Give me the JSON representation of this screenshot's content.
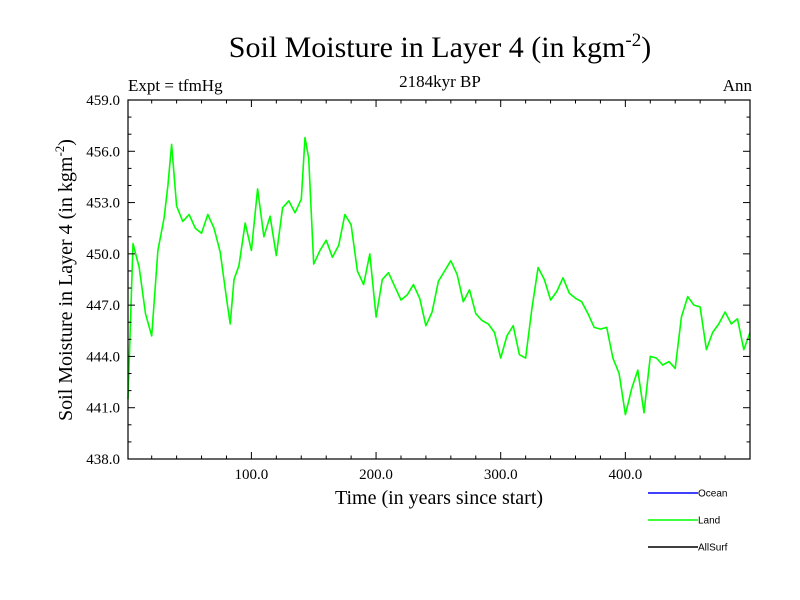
{
  "header": {
    "title_main": "Soil Moisture in Layer 4 (in kgm",
    "title_sup": "-2",
    "title_end": ")",
    "expt": "Expt = tfmHg",
    "subtitle": "2184kyr BP",
    "season": "Ann"
  },
  "colors": {
    "ocean": "#0000ff",
    "land": "#00ff00",
    "allsurf": "#000000"
  },
  "chart_data": {
    "type": "line",
    "title": "Soil Moisture in Layer 4 (in kgm-2)",
    "xlabel": "Time (in years since start)",
    "ylabel_main": "Soil Moisture in Layer 4 (in kgm",
    "ylabel_sup": "-2",
    "ylabel_end": ")",
    "xlim": [
      1,
      500
    ],
    "ylim": [
      438,
      459
    ],
    "xticks": [
      100,
      200,
      300,
      400
    ],
    "xtick_labels": [
      "100.0",
      "200.0",
      "300.0",
      "400.0"
    ],
    "yticks": [
      438,
      441,
      444,
      447,
      450,
      453,
      456,
      459
    ],
    "ytick_labels": [
      "438.0",
      "441.0",
      "444.0",
      "447.0",
      "450.0",
      "453.0",
      "456.0",
      "459.0"
    ],
    "legend": [
      {
        "name": "Ocean",
        "color": "#0000ff"
      },
      {
        "name": "Land",
        "color": "#00ff00"
      },
      {
        "name": "AllSurf",
        "color": "#000000"
      }
    ],
    "series": [
      {
        "name": "Land",
        "color": "#00ff00",
        "x": [
          1,
          5,
          10,
          15,
          20,
          25,
          30,
          33,
          36,
          40,
          45,
          50,
          55,
          60,
          65,
          70,
          75,
          80,
          83,
          86,
          90,
          95,
          100,
          105,
          110,
          115,
          120,
          125,
          130,
          135,
          140,
          143,
          146,
          150,
          155,
          160,
          165,
          170,
          175,
          180,
          185,
          190,
          195,
          200,
          205,
          210,
          215,
          220,
          225,
          230,
          235,
          240,
          245,
          250,
          255,
          260,
          265,
          270,
          275,
          280,
          285,
          290,
          295,
          300,
          305,
          310,
          315,
          320,
          325,
          330,
          335,
          340,
          345,
          350,
          355,
          360,
          365,
          370,
          375,
          380,
          385,
          390,
          395,
          400,
          405,
          410,
          415,
          420,
          425,
          430,
          435,
          440,
          445,
          450,
          455,
          460,
          465,
          470,
          475,
          480,
          485,
          490,
          495,
          500
        ],
        "y": [
          441.5,
          450.6,
          449.2,
          446.5,
          445.2,
          450.2,
          452.1,
          454.0,
          456.4,
          452.8,
          451.9,
          452.3,
          451.5,
          451.2,
          452.3,
          451.5,
          450.1,
          447.4,
          445.9,
          448.5,
          449.3,
          451.8,
          450.2,
          453.8,
          451.0,
          452.2,
          449.9,
          452.7,
          453.1,
          452.4,
          453.2,
          456.8,
          455.6,
          449.4,
          450.2,
          450.8,
          449.8,
          450.5,
          452.3,
          451.7,
          449.0,
          448.2,
          450.0,
          446.3,
          448.5,
          448.9,
          448.1,
          447.3,
          447.6,
          448.2,
          447.4,
          445.8,
          446.6,
          448.4,
          449.0,
          449.6,
          448.8,
          447.2,
          447.9,
          446.5,
          446.1,
          445.9,
          445.4,
          443.9,
          445.2,
          445.8,
          444.1,
          443.9,
          446.8,
          449.2,
          448.5,
          447.3,
          447.8,
          448.6,
          447.7,
          447.4,
          447.2,
          446.5,
          445.7,
          445.6,
          445.7,
          443.9,
          443.0,
          440.6,
          442.1,
          443.2,
          440.7,
          444.0,
          443.9,
          443.5,
          443.7,
          443.3,
          446.3,
          447.5,
          447.0,
          446.9,
          444.4,
          445.4,
          445.9,
          446.6,
          445.9,
          446.2,
          444.4,
          445.4
        ]
      }
    ]
  }
}
